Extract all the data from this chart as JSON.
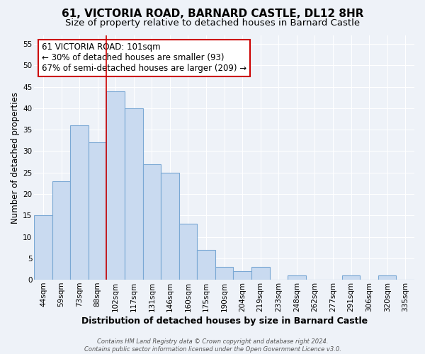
{
  "title": "61, VICTORIA ROAD, BARNARD CASTLE, DL12 8HR",
  "subtitle": "Size of property relative to detached houses in Barnard Castle",
  "xlabel": "Distribution of detached houses by size in Barnard Castle",
  "ylabel": "Number of detached properties",
  "bar_labels": [
    "44sqm",
    "59sqm",
    "73sqm",
    "88sqm",
    "102sqm",
    "117sqm",
    "131sqm",
    "146sqm",
    "160sqm",
    "175sqm",
    "190sqm",
    "204sqm",
    "219sqm",
    "233sqm",
    "248sqm",
    "262sqm",
    "277sqm",
    "291sqm",
    "306sqm",
    "320sqm",
    "335sqm"
  ],
  "bar_values": [
    15,
    23,
    36,
    32,
    44,
    40,
    27,
    25,
    13,
    7,
    3,
    2,
    3,
    0,
    1,
    0,
    0,
    1,
    0,
    1,
    0
  ],
  "bar_color": "#c9daf0",
  "bar_edge_color": "#7aa8d4",
  "vline_color": "#cc0000",
  "annotation_text": "61 VICTORIA ROAD: 101sqm\n← 30% of detached houses are smaller (93)\n67% of semi-detached houses are larger (209) →",
  "annotation_box_color": "#ffffff",
  "annotation_box_edge": "#cc0000",
  "ylim": [
    0,
    57
  ],
  "yticks": [
    0,
    5,
    10,
    15,
    20,
    25,
    30,
    35,
    40,
    45,
    50,
    55
  ],
  "footnote": "Contains HM Land Registry data © Crown copyright and database right 2024.\nContains public sector information licensed under the Open Government Licence v3.0.",
  "bg_color": "#eef2f8",
  "grid_color": "#ffffff",
  "title_fontsize": 11,
  "subtitle_fontsize": 9.5,
  "xlabel_fontsize": 9,
  "ylabel_fontsize": 8.5,
  "tick_fontsize": 7.5,
  "annot_fontsize": 8.5,
  "footnote_fontsize": 6.0
}
